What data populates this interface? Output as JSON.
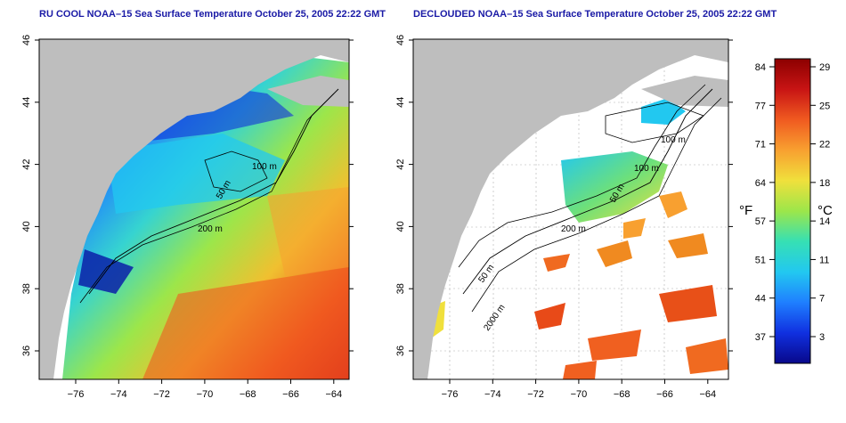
{
  "left_panel": {
    "title": "RU COOL NOAA–15 Sea Surface Temperature October 25, 2005 22:22 GMT",
    "contour_labels": [
      "100 m",
      "50 m",
      "200 m"
    ]
  },
  "right_panel": {
    "title": "DECLOUDED NOAA–15 Sea Surface Temperature October 25, 2005 22:22 GMT",
    "contour_labels": [
      "100 m",
      "100 m",
      "50 m",
      "200 m",
      "50 m",
      "2000 m"
    ]
  },
  "map_axes": {
    "x_ticks": [
      "−76",
      "−74",
      "−72",
      "−70",
      "−68",
      "−66",
      "−64"
    ],
    "y_ticks": [
      "36",
      "38",
      "40",
      "42",
      "44",
      "46"
    ]
  },
  "colorbar": {
    "fahrenheit_unit": "°F",
    "celsius_unit": "°C",
    "fahrenheit_ticks": [
      "84",
      "77",
      "71",
      "64",
      "57",
      "51",
      "44",
      "37"
    ],
    "celsius_ticks": [
      "29",
      "25",
      "22",
      "18",
      "14",
      "11",
      "7",
      "3"
    ]
  },
  "colors": {
    "land": "#bebebe",
    "title": "#1a1aa6",
    "sst_scale": [
      "#08088a",
      "#1030e0",
      "#1f7fff",
      "#22c8f0",
      "#36e0b4",
      "#9ce64a",
      "#f0e03c",
      "#f8a030",
      "#f05a20",
      "#c81414",
      "#8c0000"
    ]
  }
}
